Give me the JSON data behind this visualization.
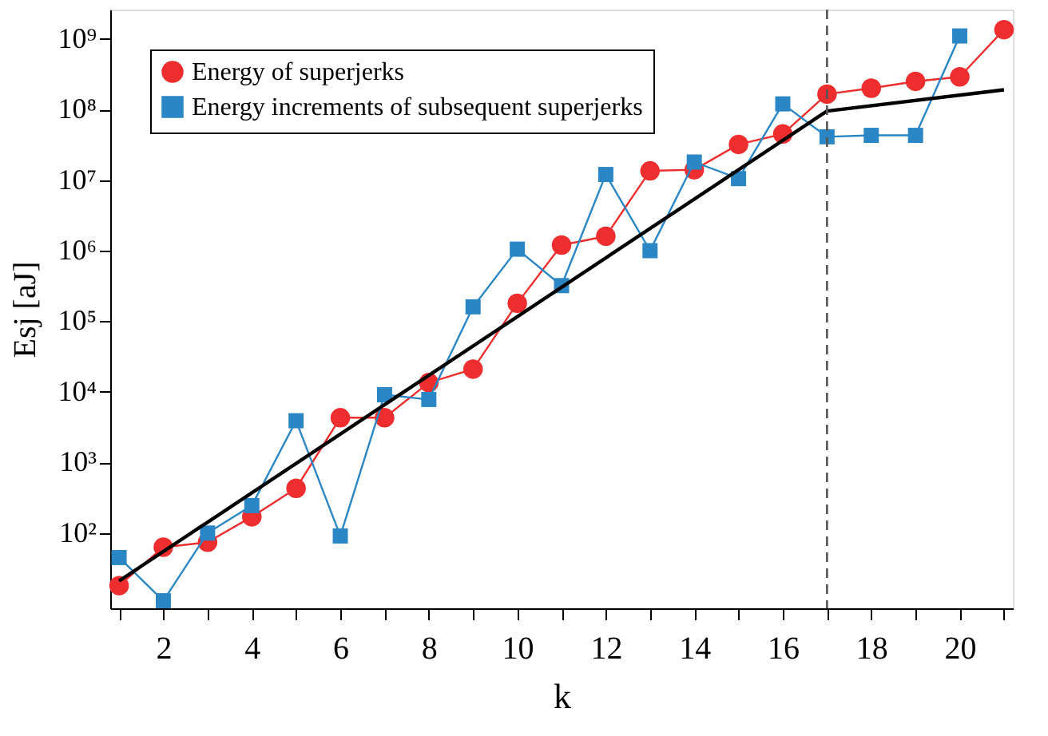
{
  "chart_data": {
    "type": "line",
    "xlabel": "k",
    "ylabel": "Esj [aJ]",
    "log": "y",
    "xlim": [
      0.8,
      21.2
    ],
    "ylim": [
      8.6,
      2600000000.0
    ],
    "xticks": [
      {
        "value": 1,
        "label": null
      },
      2,
      {
        "value": 3,
        "label": null
      },
      4,
      {
        "value": 5,
        "label": null
      },
      6,
      {
        "value": 7,
        "label": null
      },
      8,
      {
        "value": 9,
        "label": null
      },
      10,
      {
        "value": 11,
        "label": null
      },
      12,
      {
        "value": 13,
        "label": null
      },
      14,
      {
        "value": 15,
        "label": null
      },
      16,
      {
        "value": 17,
        "label": null
      },
      18,
      {
        "value": 19,
        "label": null
      },
      20,
      {
        "value": 21,
        "label": null
      }
    ],
    "yticks": [
      {
        "value": 100,
        "label": "10²"
      },
      {
        "value": 1000,
        "label": "10³"
      },
      {
        "value": 10000,
        "label": "10⁴"
      },
      {
        "value": 100000,
        "label": "10⁵"
      },
      {
        "value": 1000000,
        "label": "10⁶"
      },
      {
        "value": 10000000,
        "label": "10⁷"
      },
      {
        "value": 100000000,
        "label": "10⁸"
      },
      {
        "value": 1000000000,
        "label": "10⁹"
      }
    ],
    "grid": false,
    "legend": "top left",
    "ref_lines": [
      {
        "axis": "x",
        "value": 17,
        "line_style": "dashed",
        "color": "#555555"
      }
    ],
    "series": [
      {
        "name": "Energy of superjerks",
        "color": "#ee2e2e",
        "marker": "circle",
        "x": [
          1,
          2,
          3,
          4,
          5,
          6,
          7,
          8,
          9,
          10,
          11,
          12,
          13,
          14,
          15,
          16,
          17,
          18,
          19,
          20,
          21
        ],
        "values": [
          18,
          63,
          74,
          170,
          430,
          4300,
          4300,
          13500,
          21000,
          180000,
          1200000,
          1600000,
          13500000,
          14000000,
          32000000,
          45000000,
          165000000,
          200000000,
          250000000,
          290000000,
          1350000000
        ]
      },
      {
        "name": "Energy increments of subsequent superjerks",
        "color": "#2a86c4",
        "marker": "square",
        "x": [
          1,
          2,
          3,
          4,
          5,
          6,
          7,
          8,
          9,
          10,
          11,
          12,
          13,
          14,
          15,
          16,
          17,
          18,
          19,
          20
        ],
        "values": [
          45,
          11,
          100,
          245,
          3900,
          91,
          9100,
          7800,
          160000,
          1050000,
          320000,
          12000000,
          1000000,
          18000000,
          10500000,
          120000000,
          41000000,
          43000000,
          43000000,
          1100000000
        ]
      },
      {
        "color": "#000000",
        "marker": "none",
        "x": [
          1,
          17,
          21
        ],
        "values": [
          21,
          95000000,
          190000000
        ]
      }
    ]
  }
}
